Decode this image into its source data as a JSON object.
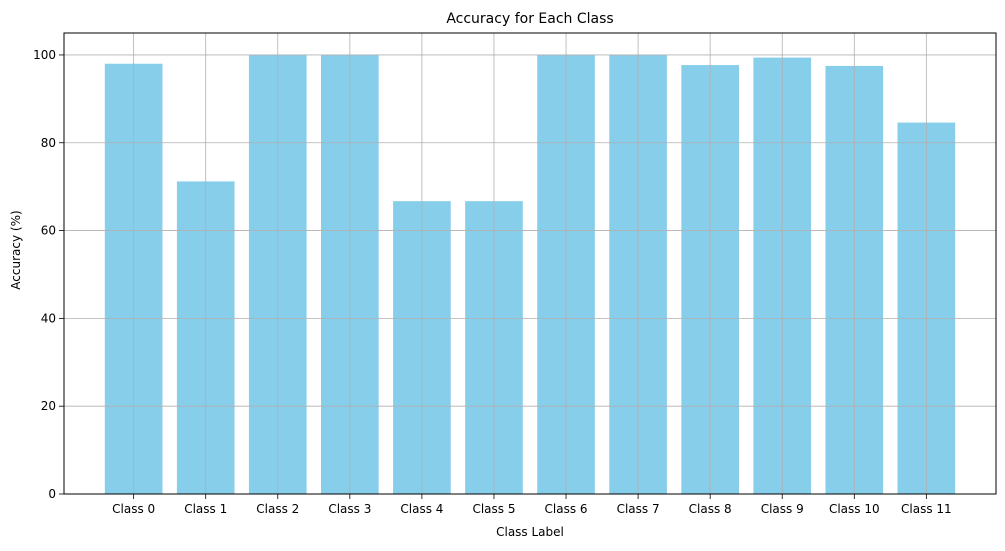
{
  "chart_data": {
    "type": "bar",
    "title": "Accuracy for Each Class",
    "xlabel": "Class Label",
    "ylabel": "Accuracy (%)",
    "categories": [
      "Class 0",
      "Class 1",
      "Class 2",
      "Class 3",
      "Class 4",
      "Class 5",
      "Class 6",
      "Class 7",
      "Class 8",
      "Class 9",
      "Class 10",
      "Class 11"
    ],
    "values": [
      98.0,
      71.2,
      100.0,
      100.0,
      66.7,
      66.7,
      100.0,
      100.0,
      97.7,
      99.4,
      97.5,
      84.6
    ],
    "ylim": [
      0,
      105
    ],
    "yticks": [
      0,
      20,
      40,
      60,
      80,
      100
    ],
    "grid": true,
    "bar_color": "#87ceeb",
    "grid_color": "#b0b0b0"
  }
}
